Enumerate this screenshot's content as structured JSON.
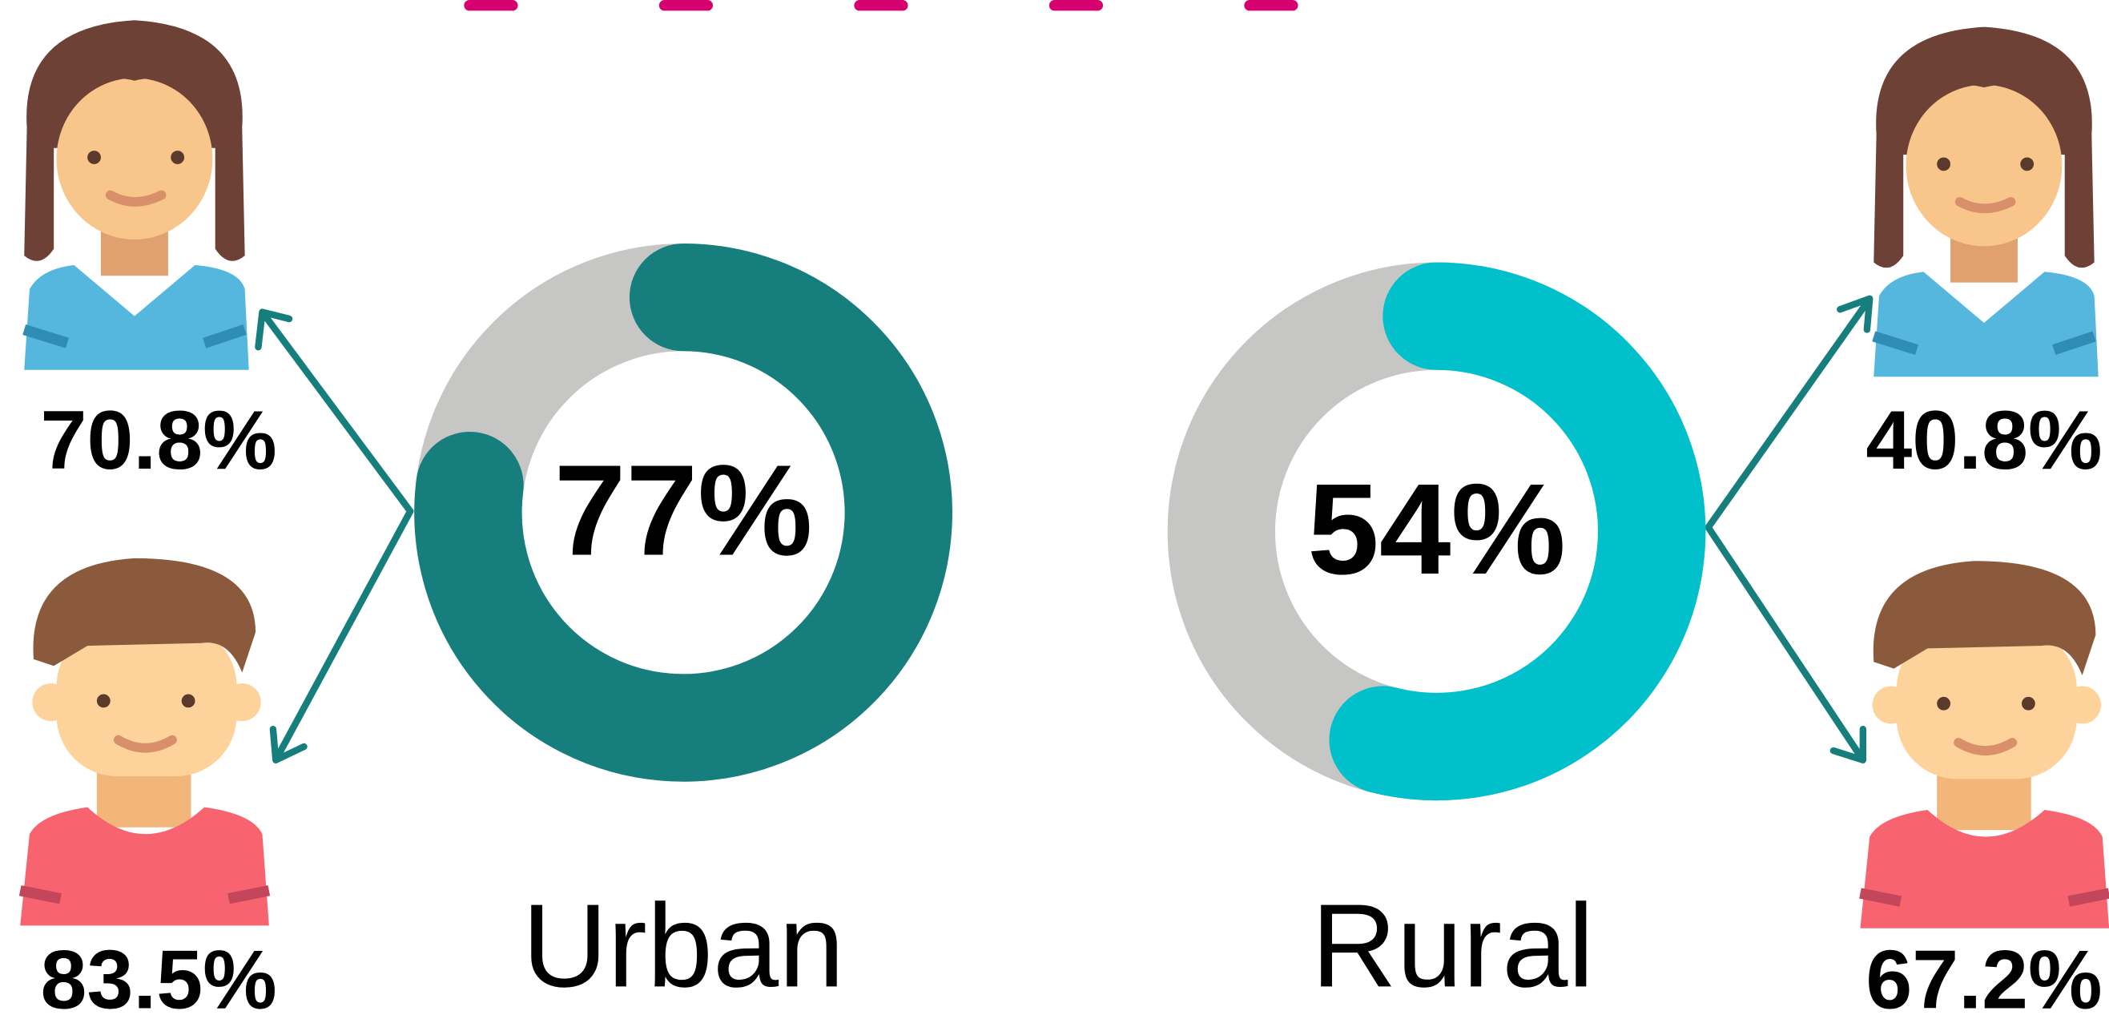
{
  "chart_data": [
    {
      "type": "donut",
      "title": "Urban",
      "values": [
        77
      ],
      "value_labels": [
        "77%"
      ],
      "color": "#177e7e",
      "track_color": "#c6c6c4",
      "breakdown": {
        "values": [
          70.8,
          83.5
        ],
        "value_labels": [
          "70.8%",
          "83.5%"
        ]
      }
    },
    {
      "type": "donut",
      "title": "Rural",
      "values": [
        54
      ],
      "value_labels": [
        "54%"
      ],
      "color": "#00c0cc",
      "track_color": "#c6c6c4",
      "breakdown": {
        "values": [
          40.8,
          67.2
        ],
        "value_labels": [
          "40.8%",
          "67.2%"
        ]
      }
    }
  ]
}
